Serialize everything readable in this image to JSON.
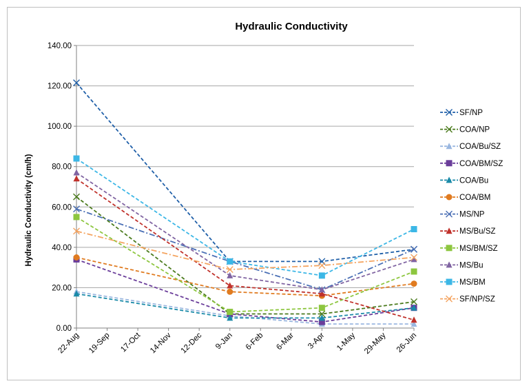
{
  "chart_data": {
    "type": "line",
    "title": "Hydraulic Conductivity",
    "xlabel": "",
    "ylabel": "Hydraulic Conductivity  (cm/h)",
    "ylim": [
      0,
      140
    ],
    "y_ticks": [
      "0.00",
      "20.00",
      "40.00",
      "60.00",
      "80.00",
      "100.00",
      "120.00",
      "140.00"
    ],
    "x_ticks": [
      "22-Aug",
      "19-Sep",
      "17-Oct",
      "14-Nov",
      "12-Dec",
      "9-Jan",
      "6-Feb",
      "6-Mar",
      "3-Apr",
      "1-May",
      "29-May",
      "26-Jun"
    ],
    "x": [
      "22-Aug",
      "9-Jan",
      "3-Apr",
      "26-Jun"
    ],
    "grid": "horizontal",
    "legend_position": "right",
    "series": [
      {
        "name": "SF/NP",
        "color": "#1f5fa8",
        "marker": "x",
        "dash": "5,3",
        "values": [
          121.5,
          33,
          33,
          39
        ]
      },
      {
        "name": "COA/NP",
        "color": "#4a7a1c",
        "marker": "x",
        "dash": "5,3",
        "values": [
          65,
          7,
          7,
          13
        ]
      },
      {
        "name": "COA/Bu/SZ",
        "color": "#9ab7e0",
        "marker": "triangle",
        "dash": "5,3",
        "values": [
          18,
          6,
          2,
          2
        ]
      },
      {
        "name": "COA/BM/SZ",
        "color": "#6a3d9a",
        "marker": "square",
        "dash": "5,3",
        "values": [
          34,
          7,
          3,
          10
        ]
      },
      {
        "name": "COA/Bu",
        "color": "#1a8aa8",
        "marker": "triangle",
        "dash": "5,3",
        "values": [
          17,
          5,
          5,
          10
        ]
      },
      {
        "name": "COA/BM",
        "color": "#e07b20",
        "marker": "circle",
        "dash": "5,3",
        "values": [
          35,
          18,
          16,
          22
        ]
      },
      {
        "name": "MS/NP",
        "color": "#4a6fb5",
        "marker": "x",
        "dash": "8,3,2,3",
        "values": [
          59,
          33,
          19,
          39
        ]
      },
      {
        "name": "MS/Bu/SZ",
        "color": "#c0312b",
        "marker": "triangle",
        "dash": "5,3",
        "values": [
          74,
          21,
          17,
          4
        ]
      },
      {
        "name": "MS/BM/SZ",
        "color": "#8dc63f",
        "marker": "square",
        "dash": "5,3",
        "values": [
          55,
          8,
          10,
          28
        ]
      },
      {
        "name": "MS/Bu",
        "color": "#8064a2",
        "marker": "triangle",
        "dash": "5,3",
        "values": [
          77,
          26,
          19,
          34
        ]
      },
      {
        "name": "MS/BM",
        "color": "#3cb7e6",
        "marker": "square",
        "dash": "5,3",
        "values": [
          84,
          33,
          26,
          49
        ]
      },
      {
        "name": "SF/NP/SZ",
        "color": "#f4a460",
        "marker": "x",
        "dash": "8,3,2,3",
        "values": [
          48,
          29,
          31,
          35
        ]
      }
    ]
  }
}
